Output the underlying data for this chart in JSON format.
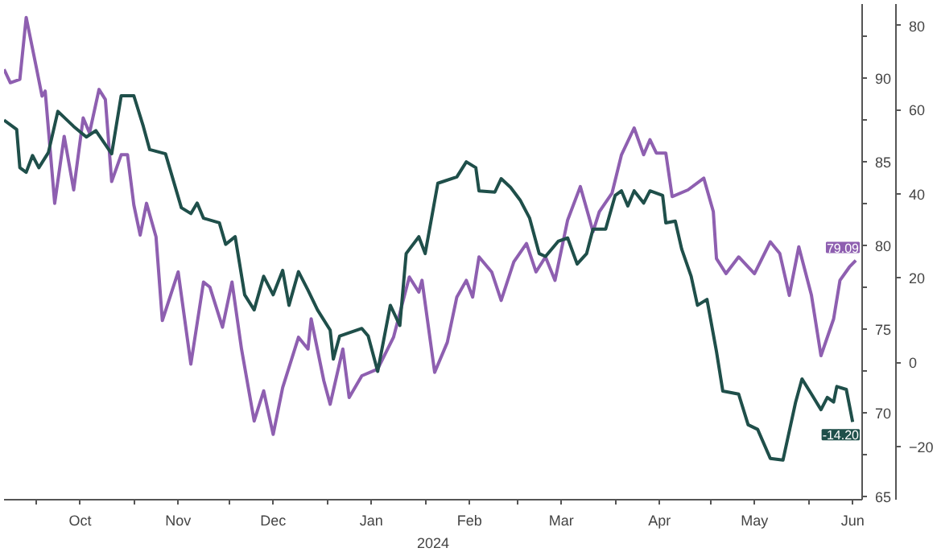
{
  "chart_data": {
    "type": "line",
    "xlabel": "2024",
    "xlim": [
      "2023-09-21",
      "2024-06-18"
    ],
    "xticks": [
      {
        "value": "2023-10-01",
        "label": null
      },
      {
        "value": "2023-10-15",
        "label": "Oct"
      },
      {
        "value": "2023-11-01",
        "label": null
      },
      {
        "value": "2023-11-15",
        "label": "Nov"
      },
      {
        "value": "2023-12-01",
        "label": null
      },
      {
        "value": "2023-12-15",
        "label": "Dec"
      },
      {
        "value": "2024-01-01",
        "label": null
      },
      {
        "value": "2024-01-15",
        "label": "Jan"
      },
      {
        "value": "2024-02-01",
        "label": null
      },
      {
        "value": "2024-02-15",
        "label": "Feb"
      },
      {
        "value": "2024-03-01",
        "label": null
      },
      {
        "value": "2024-03-15",
        "label": "Mar"
      },
      {
        "value": "2024-04-01",
        "label": null
      },
      {
        "value": "2024-04-15",
        "label": "Apr"
      },
      {
        "value": "2024-05-01",
        "label": null
      },
      {
        "value": "2024-05-15",
        "label": "May"
      },
      {
        "value": "2024-06-01",
        "label": null
      },
      {
        "value": "2024-06-15",
        "label": "Jun"
      }
    ],
    "ylim": [
      64.8,
      94.4
    ],
    "yticks": [
      65,
      {
        "value": 67.5,
        "label": null
      },
      70,
      {
        "value": 72.5,
        "label": null
      },
      75,
      {
        "value": 77.5,
        "label": null
      },
      80,
      {
        "value": 82.5,
        "label": null
      },
      85,
      {
        "value": 87.5,
        "label": null
      },
      90,
      {
        "value": 92.5,
        "label": null
      }
    ],
    "y2lim": [
      -32.7,
      85.1
    ],
    "y2ticks": [
      -20,
      0,
      20,
      40,
      60,
      80
    ],
    "grid": false,
    "marker": "none",
    "line_style": "solid",
    "series": [
      {
        "color": "#8e5fb0",
        "x": [
          "2023-09-21",
          "2023-09-23",
          "2023-09-26",
          "2023-09-28",
          "2023-10-01",
          "2023-10-03",
          "2023-10-04",
          "2023-10-07",
          "2023-10-10",
          "2023-10-13",
          "2023-10-16",
          "2023-10-18",
          "2023-10-21",
          "2023-10-23",
          "2023-10-25",
          "2023-10-28",
          "2023-10-30",
          "2023-11-01",
          "2023-11-03",
          "2023-11-05",
          "2023-11-08",
          "2023-11-10",
          "2023-11-15",
          "2023-11-19",
          "2023-11-23",
          "2023-11-25",
          "2023-11-29",
          "2023-12-02",
          "2023-12-05",
          "2023-12-09",
          "2023-12-12",
          "2023-12-15",
          "2023-12-18",
          "2023-12-23",
          "2023-12-26",
          "2023-12-27",
          "2023-12-31",
          "2024-01-02",
          "2024-01-06",
          "2024-01-08",
          "2024-01-12",
          "2024-01-17",
          "2024-01-22",
          "2024-01-27",
          "2024-01-30",
          "2024-01-31",
          "2024-02-04",
          "2024-02-08",
          "2024-02-11",
          "2024-02-14",
          "2024-02-16",
          "2024-02-18",
          "2024-02-22",
          "2024-02-25",
          "2024-02-29",
          "2024-03-04",
          "2024-03-07",
          "2024-03-10",
          "2024-03-13",
          "2024-03-17",
          "2024-03-21",
          "2024-03-24",
          "2024-03-25",
          "2024-03-27",
          "2024-03-31",
          "2024-04-03",
          "2024-04-07",
          "2024-04-10",
          "2024-04-12",
          "2024-04-14",
          "2024-04-17",
          "2024-04-19",
          "2024-04-24",
          "2024-04-29",
          "2024-05-02",
          "2024-05-03",
          "2024-05-06",
          "2024-05-10",
          "2024-05-15",
          "2024-05-20",
          "2024-05-23",
          "2024-05-26",
          "2024-05-29",
          "2024-06-02",
          "2024-06-05",
          "2024-06-09",
          "2024-06-11",
          "2024-06-14",
          "2024-06-16"
        ],
        "values": [
          90.5,
          89.7,
          89.9,
          93.6,
          90.8,
          88.9,
          89.2,
          82.5,
          86.5,
          83.3,
          87.6,
          86.7,
          89.3,
          88.7,
          83.8,
          85.4,
          85.4,
          82.4,
          80.6,
          82.5,
          80.5,
          75.5,
          78.4,
          72.9,
          77.8,
          77.5,
          75.1,
          77.8,
          73.8,
          69.5,
          71.3,
          68.7,
          71.5,
          74.5,
          73.8,
          75.6,
          71.9,
          70.5,
          73.8,
          70.9,
          72.2,
          72.6,
          74.5,
          78.1,
          77.2,
          77.9,
          72.4,
          74.2,
          76.9,
          77.9,
          76.9,
          79.3,
          78.4,
          76.7,
          79.0,
          80.1,
          78.4,
          79.3,
          77.9,
          81.5,
          83.5,
          81.5,
          80.8,
          82.0,
          83.1,
          85.4,
          87.0,
          85.4,
          86.3,
          85.5,
          85.5,
          82.9,
          83.3,
          84.0,
          82.0,
          79.2,
          78.3,
          79.3,
          78.3,
          80.2,
          79.5,
          77.0,
          79.9,
          77.0,
          73.4,
          75.6,
          77.9,
          78.7,
          79.09
        ],
        "value_labels": [
          null,
          null,
          null,
          null,
          null,
          null,
          null,
          null,
          null,
          null,
          null,
          null,
          null,
          null,
          null,
          null,
          null,
          null,
          null,
          null,
          null,
          null,
          null,
          null,
          null,
          null,
          null,
          null,
          null,
          null,
          null,
          null,
          null,
          null,
          null,
          null,
          null,
          null,
          null,
          null,
          null,
          null,
          null,
          null,
          null,
          null,
          null,
          null,
          null,
          null,
          null,
          null,
          null,
          null,
          null,
          null,
          null,
          null,
          null,
          null,
          null,
          null,
          null,
          null,
          null,
          null,
          null,
          null,
          null,
          null,
          null,
          null,
          null,
          null,
          null,
          null,
          null,
          null,
          null,
          null,
          null,
          null,
          null,
          null,
          null,
          null,
          null,
          null,
          "79.09"
        ]
      },
      {
        "color": "#1f4f4a",
        "axis": "y2",
        "x": [
          "2023-09-21",
          "2023-09-25",
          "2023-09-26",
          "2023-09-28",
          "2023-09-30",
          "2023-10-02",
          "2023-10-05",
          "2023-10-08",
          "2023-10-13",
          "2023-10-17",
          "2023-10-20",
          "2023-10-25",
          "2023-10-28",
          "2023-11-01",
          "2023-11-04",
          "2023-11-06",
          "2023-11-11",
          "2023-11-16",
          "2023-11-19",
          "2023-11-21",
          "2023-11-23",
          "2023-11-28",
          "2023-11-30",
          "2023-12-03",
          "2023-12-06",
          "2023-12-09",
          "2023-12-12",
          "2023-12-15",
          "2023-12-18",
          "2023-12-20",
          "2023-12-23",
          "2023-12-26",
          "2023-12-29",
          "2024-01-02",
          "2024-01-03",
          "2024-01-05",
          "2024-01-12",
          "2024-01-14",
          "2024-01-17",
          "2024-01-21",
          "2024-01-24",
          "2024-01-26",
          "2024-01-30",
          "2024-02-01",
          "2024-02-05",
          "2024-02-11",
          "2024-02-14",
          "2024-02-17",
          "2024-02-18",
          "2024-02-23",
          "2024-02-25",
          "2024-02-28",
          "2024-03-02",
          "2024-03-05",
          "2024-03-08",
          "2024-03-10",
          "2024-03-14",
          "2024-03-17",
          "2024-03-20",
          "2024-03-23",
          "2024-03-25",
          "2024-03-29",
          "2024-04-01",
          "2024-04-03",
          "2024-04-05",
          "2024-04-07",
          "2024-04-10",
          "2024-04-12",
          "2024-04-16",
          "2024-04-17",
          "2024-04-20",
          "2024-04-22",
          "2024-04-25",
          "2024-04-27",
          "2024-04-30",
          "2024-05-03",
          "2024-05-05",
          "2024-05-10",
          "2024-05-13",
          "2024-05-16",
          "2024-05-20",
          "2024-05-24",
          "2024-05-28",
          "2024-05-30",
          "2024-06-02",
          "2024-06-05",
          "2024-06-07",
          "2024-06-09",
          "2024-06-10",
          "2024-06-13",
          "2024-06-15"
        ],
        "values": [
          57.5,
          55.3,
          46.2,
          45.1,
          49.1,
          46.2,
          49.8,
          59.6,
          56.0,
          53.5,
          55.0,
          49.5,
          63.3,
          63.3,
          56.0,
          50.5,
          49.5,
          36.7,
          35.3,
          37.8,
          34.2,
          33.1,
          28.0,
          29.8,
          16.0,
          12.4,
          20.4,
          16.0,
          21.8,
          13.5,
          21.5,
          17.1,
          12.4,
          7.6,
          0.7,
          6.2,
          8.0,
          6.2,
          -2.2,
          13.5,
          8.7,
          25.8,
          29.8,
          25.8,
          42.5,
          44.0,
          47.6,
          46.2,
          40.7,
          40.4,
          43.6,
          41.5,
          38.5,
          34.2,
          25.8,
          25.1,
          28.7,
          29.5,
          23.3,
          25.8,
          31.6,
          31.6,
          39.6,
          40.7,
          37.1,
          40.7,
          37.8,
          40.7,
          39.6,
          33.1,
          33.5,
          26.9,
          20.4,
          13.5,
          14.9,
          2.5,
          -6.9,
          -7.6,
          -14.9,
          -16.0,
          -22.9,
          -23.3,
          -9.5,
          -4.0,
          -7.6,
          -11.3,
          -8.4,
          -9.5,
          -5.8,
          -6.5,
          -14.2
        ],
        "value_labels": [
          null,
          null,
          null,
          null,
          null,
          null,
          null,
          null,
          null,
          null,
          null,
          null,
          null,
          null,
          null,
          null,
          null,
          null,
          null,
          null,
          null,
          null,
          null,
          null,
          null,
          null,
          null,
          null,
          null,
          null,
          null,
          null,
          null,
          null,
          null,
          null,
          null,
          null,
          null,
          null,
          null,
          null,
          null,
          null,
          null,
          null,
          null,
          null,
          null,
          null,
          null,
          null,
          null,
          null,
          null,
          null,
          null,
          null,
          null,
          null,
          null,
          null,
          null,
          null,
          null,
          null,
          null,
          null,
          null,
          null,
          null,
          null,
          null,
          null,
          null,
          null,
          null,
          null,
          null,
          null,
          null,
          null,
          null,
          null,
          null,
          null,
          null,
          null,
          null,
          null,
          "-14.20"
        ]
      }
    ]
  }
}
